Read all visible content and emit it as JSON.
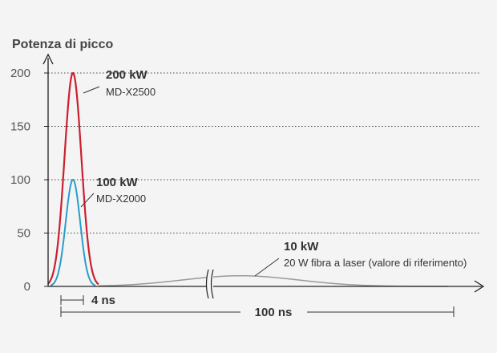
{
  "chart_data": {
    "type": "line",
    "ylabel": "Potenza di picco",
    "xlabel": "",
    "ylim": [
      0,
      200
    ],
    "yticks": [
      0,
      50,
      100,
      150,
      200
    ],
    "grid": "horizontal dotted",
    "axis_break_on_x": true,
    "series": [
      {
        "name": "MD-X2500",
        "peak_value": "200 kW",
        "peak": 200,
        "color": "#cc1f2e"
      },
      {
        "name": "MD-X2000",
        "peak_value": "100 kW",
        "peak": 100,
        "color": "#2a9dc8"
      },
      {
        "name": "20 W fibra a laser (valore di riferimento)",
        "peak_value": "10 kW",
        "peak": 10,
        "color": "#999999"
      }
    ],
    "annotations": [
      {
        "text": "4 ns",
        "span_ns": 4
      },
      {
        "text": "100 ns",
        "span_ns": 100
      }
    ]
  },
  "colors": {
    "axis": "#222222",
    "grid": "#444444",
    "marker": "#333333",
    "background": "#f4f4f4"
  }
}
